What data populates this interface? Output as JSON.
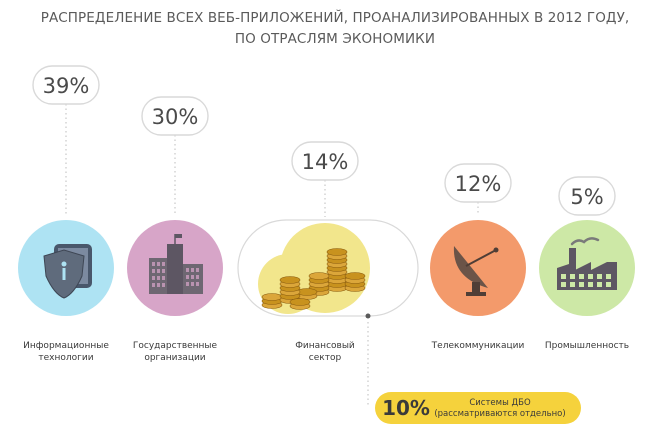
{
  "title": {
    "line1": "РАСПРЕДЕЛЕНИЕ ВСЕХ ВЕБ-ПРИЛОЖЕНИЙ, ПРОАНАЛИЗИРОВАННЫХ В 2012 ГОДУ,",
    "line2": "ПО ОТРАСЛЯМ ЭКОНОМИКИ"
  },
  "colors": {
    "it": "#aee3f3",
    "gov": "#d7a5c8",
    "fin": "#f2e68c",
    "telecom": "#f39a6b",
    "industry": "#cde8a6",
    "icon": "#5d5663",
    "note_bg": "#f5d23c",
    "bubble_stroke": "#d9d9d9",
    "dotted": "#bdbdbd"
  },
  "chart_data": {
    "type": "infographic",
    "title": "РАСПРЕДЕЛЕНИЕ ВСЕХ ВЕБ-ПРИЛОЖЕНИЙ, ПРОАНАЛИЗИРОВАННЫХ В 2012 ГОДУ, ПО ОТРАСЛЯМ ЭКОНОМИКИ",
    "unit": "%",
    "categories": [
      {
        "label_lines": [
          "Информационные",
          "технологии"
        ],
        "value": 39,
        "value_label": "39%",
        "icon": "shield-tablet-icon"
      },
      {
        "label_lines": [
          "Государственные",
          "организации"
        ],
        "value": 30,
        "value_label": "30%",
        "icon": "government-building-icon"
      },
      {
        "label_lines": [
          "Финансовый",
          "сектор"
        ],
        "value": 14,
        "value_label": "14%",
        "icon": "coin-stacks-icon"
      },
      {
        "label_lines": [
          "Телекоммуникации"
        ],
        "value": 12,
        "value_label": "12%",
        "icon": "satellite-dish-icon"
      },
      {
        "label_lines": [
          "Промышленность"
        ],
        "value": 5,
        "value_label": "5%",
        "icon": "factory-icon"
      }
    ],
    "sub_note": {
      "value": 10,
      "value_label": "10%",
      "line1": "Системы ДБО",
      "line2": "(рассматриваются отдельно)"
    }
  }
}
